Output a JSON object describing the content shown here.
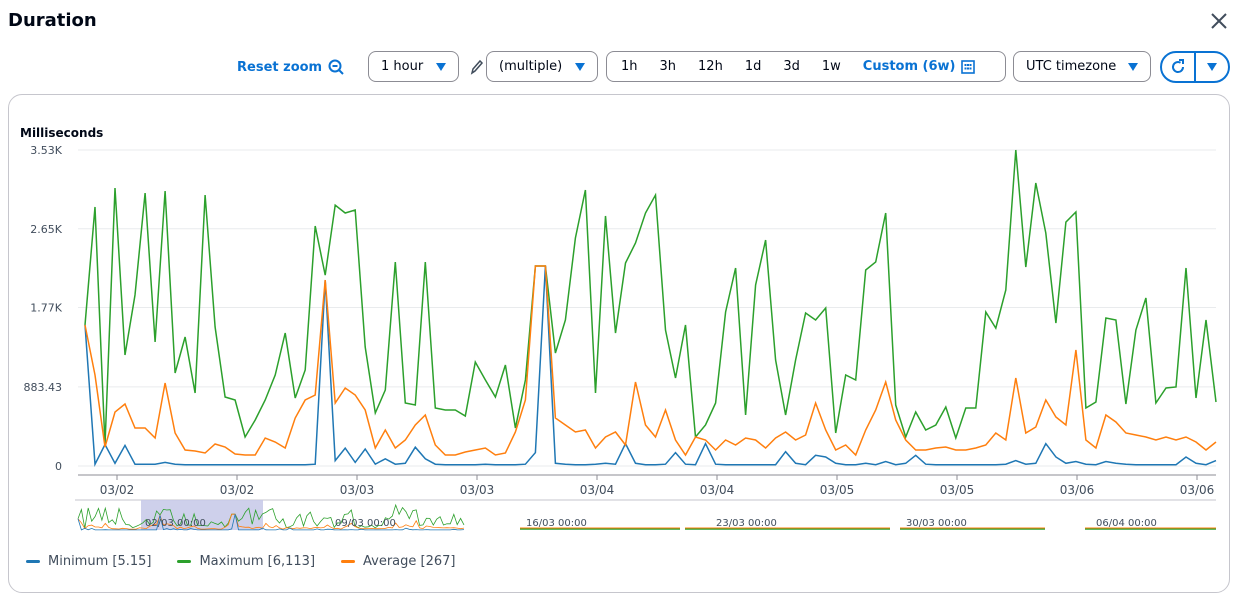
{
  "header": {
    "title": "Duration"
  },
  "toolbar": {
    "reset_zoom": "Reset zoom",
    "period": "1 hour",
    "statistic": "(multiple)",
    "ranges": [
      "1h",
      "3h",
      "12h",
      "1d",
      "3d",
      "1w"
    ],
    "custom_range": "Custom (6w)",
    "timezone": "UTC timezone"
  },
  "colors": {
    "accent": "#0972d3",
    "minimum": "#1f77b4",
    "maximum": "#2ca02c",
    "average": "#ff7f0e"
  },
  "chart_data": {
    "type": "line",
    "ylabel": "Milliseconds",
    "ylim": [
      0,
      3530
    ],
    "yticks": [
      {
        "v": 0,
        "label": "0"
      },
      {
        "v": 883.43,
        "label": "883.43"
      },
      {
        "v": 1770,
        "label": "1.77K"
      },
      {
        "v": 2650,
        "label": "2.65K"
      },
      {
        "v": 3530,
        "label": "3.53K"
      }
    ],
    "xtick_labels": [
      "03/02",
      "03/02",
      "03/03",
      "03/03",
      "03/04",
      "03/04",
      "03/05",
      "03/05",
      "03/06",
      "03/06"
    ],
    "grid": true,
    "legend_position": "bottom-left",
    "series": [
      {
        "name": "Minimum",
        "legend": "Minimum [5.15]",
        "color": "#1f77b4",
        "values": [
          1575,
          20,
          240,
          30,
          230,
          20,
          20,
          20,
          40,
          20,
          15,
          15,
          15,
          15,
          15,
          15,
          15,
          15,
          15,
          15,
          15,
          15,
          15,
          20,
          2078,
          60,
          200,
          40,
          190,
          20,
          80,
          20,
          30,
          210,
          80,
          20,
          15,
          15,
          15,
          15,
          20,
          15,
          15,
          15,
          20,
          150,
          2234,
          30,
          20,
          15,
          15,
          20,
          30,
          20,
          250,
          30,
          15,
          15,
          20,
          150,
          20,
          15,
          250,
          20,
          15,
          15,
          15,
          15,
          15,
          15,
          160,
          30,
          15,
          120,
          100,
          30,
          15,
          15,
          30,
          15,
          50,
          15,
          30,
          120,
          20,
          15,
          15,
          15,
          15,
          15,
          15,
          15,
          20,
          60,
          20,
          30,
          250,
          100,
          30,
          50,
          20,
          15,
          50,
          30,
          20,
          15,
          15,
          15,
          15,
          15,
          100,
          30,
          15,
          60
        ]
      },
      {
        "name": "Maximum",
        "legend": "Maximum [6,113]",
        "color": "#2ca02c",
        "values": [
          1575,
          2893,
          235,
          3105,
          1240,
          1910,
          3049,
          1385,
          3072,
          1039,
          1441,
          815,
          3027,
          1553,
          771,
          737,
          324,
          514,
          737,
          1016,
          1486,
          760,
          1072,
          2681,
          2133,
          2915,
          2826,
          2860,
          1329,
          592,
          849,
          2279,
          704,
          681,
          2279,
          648,
          626,
          626,
          559,
          1162,
          961,
          771,
          1128,
          424,
          961,
          2234,
          2234,
          1262,
          1631,
          2547,
          3083,
          815,
          2793,
          1486,
          2268,
          2491,
          2826,
          3027,
          1519,
          983,
          1575,
          324,
          458,
          704,
          1720,
          2212,
          570,
          2022,
          2524,
          1184,
          570,
          1184,
          1709,
          1631,
          1765,
          369,
          1016,
          961,
          2189,
          2279,
          2826,
          681,
          324,
          603,
          402,
          458,
          659,
          313,
          648,
          648,
          1720,
          1541,
          1966,
          3530,
          2223,
          3161,
          2603,
          1597,
          2725,
          2837,
          648,
          715,
          1653,
          1631,
          693,
          1519,
          1877,
          704,
          871,
          882,
          2212,
          760,
          1631,
          715
        ]
      },
      {
        "name": "Average",
        "legend": "Average [267]",
        "color": "#ff7f0e",
        "values": [
          1575,
          1016,
          212,
          603,
          693,
          424,
          424,
          313,
          927,
          369,
          179,
          168,
          145,
          246,
          212,
          134,
          123,
          123,
          313,
          268,
          201,
          536,
          737,
          793,
          2078,
          704,
          871,
          793,
          626,
          201,
          402,
          201,
          290,
          458,
          570,
          235,
          123,
          123,
          156,
          179,
          201,
          123,
          145,
          380,
          737,
          2234,
          2234,
          536,
          458,
          380,
          402,
          201,
          324,
          380,
          235,
          938,
          458,
          324,
          626,
          290,
          123,
          324,
          290,
          179,
          290,
          235,
          313,
          290,
          201,
          313,
          380,
          290,
          346,
          704,
          402,
          179,
          235,
          123,
          402,
          626,
          938,
          514,
          290,
          179,
          179,
          201,
          212,
          179,
          179,
          201,
          235,
          369,
          290,
          983,
          369,
          436,
          737,
          547,
          458,
          1296,
          290,
          201,
          570,
          491,
          369,
          346,
          324,
          290,
          324,
          290,
          324,
          268,
          179,
          268
        ]
      }
    ],
    "overview_labels": [
      "02/03 00:00",
      "09/03 00:00",
      "16/03 00:00",
      "23/03 00:00",
      "30/03 00:00",
      "06/04 00:00"
    ]
  }
}
